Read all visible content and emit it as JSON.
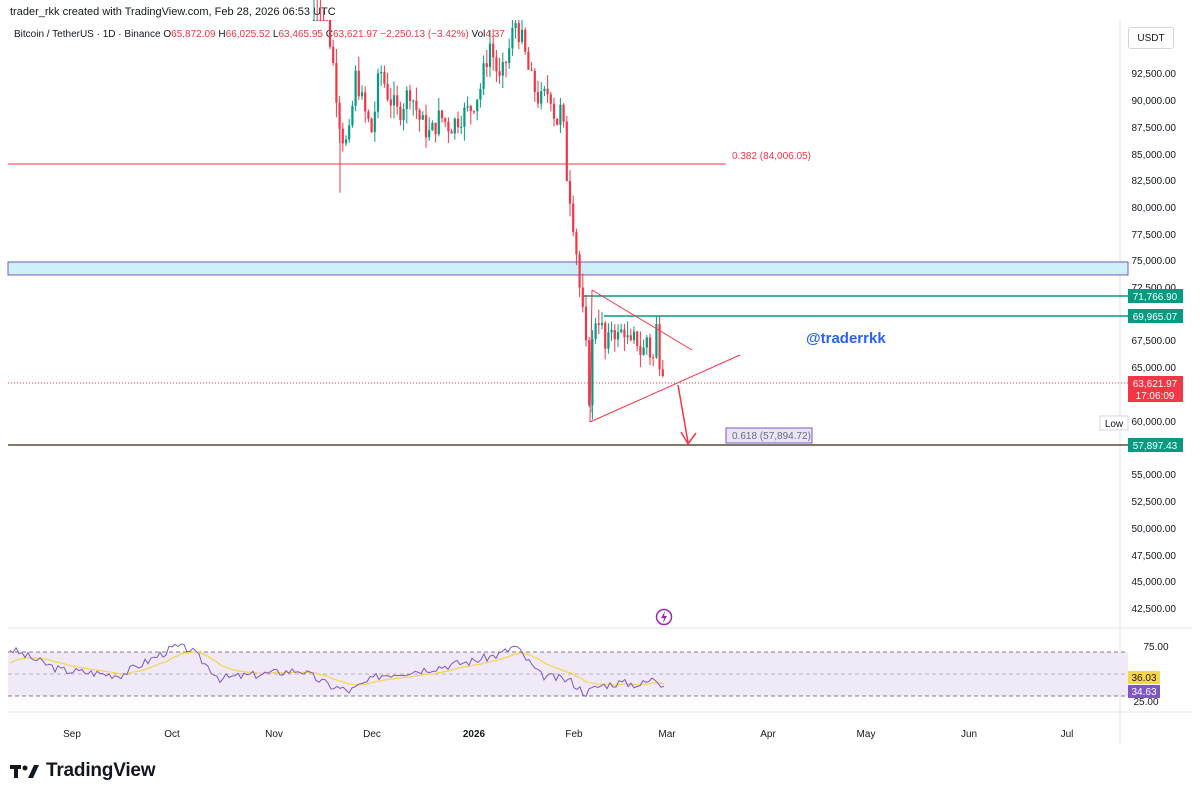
{
  "header": {
    "created_by": "trader_rkk created with TradingView.com, Feb 28, 2026 06:53 UTC"
  },
  "legend": {
    "symbol": "Bitcoin / TetherUS · 1D · Binance",
    "o_label": "O",
    "o_value": "65,872.09",
    "h_label": "H",
    "h_value": "66,025.52",
    "l_label": "L",
    "l_value": "63,465.95",
    "c_label": "C",
    "c_value": "63,621.97",
    "change": "−2,250.13 (−3.42%)",
    "vol_label": "Vol",
    "vol_value": "4.37"
  },
  "currency_button": "USDT",
  "brand": {
    "name": "TradingView"
  },
  "colors": {
    "up": "#089981",
    "down": "#f23645",
    "fib": "#f23645",
    "green_line": "#089981",
    "zone_fill": "#cdeff6",
    "zone_border": "#7e57c2",
    "rsi": "#7e57c2",
    "rsi_ma": "#f7d54a"
  },
  "chart_data": {
    "type": "candlestick",
    "y_axis": {
      "ylim": [
        40000,
        97000
      ],
      "ticks": [
        "42,500.00",
        "45,000.00",
        "47,500.00",
        "50,000.00",
        "52,500.00",
        "55,000.00",
        "57,500.00",
        "60,000.00",
        "62,500.00",
        "65,000.00",
        "67,500.00",
        "70,000.00",
        "72,500.00",
        "75,000.00",
        "77,500.00",
        "80,000.00",
        "82,500.00",
        "85,000.00",
        "87,500.00",
        "90,000.00",
        "92,500.00"
      ]
    },
    "x_axis": {
      "ticks": [
        "Sep",
        "Oct",
        "Nov",
        "Dec",
        "2026",
        "Feb",
        "Mar",
        "Apr",
        "May",
        "Jun",
        "Jul"
      ]
    },
    "candles_summary": [
      {
        "date": "Nov",
        "close": 104000
      },
      {
        "date": "Dec",
        "close": 87000
      },
      {
        "date": "2026",
        "close": 88500
      },
      {
        "date": "Jan mid",
        "close": 96000
      },
      {
        "date": "Feb",
        "close": 62500
      },
      {
        "date": "Feb 28",
        "close": 63621.97
      }
    ],
    "levels": [
      {
        "name": "fib-0382",
        "label": "0.382 (84,006.05)",
        "value": 84006.05
      },
      {
        "name": "fib-0618",
        "label": "0.618 (57,894.72)",
        "value": 57894.72
      },
      {
        "name": "resistance-1",
        "label": "71,766.90",
        "value": 71766.9
      },
      {
        "name": "resistance-2",
        "label": "69,965.07",
        "value": 69965.07
      },
      {
        "name": "support-low",
        "label": "57,897.43",
        "value": 57897.43
      }
    ],
    "zone": {
      "from": 73800,
      "to": 75000
    },
    "last_price": {
      "label": "63,621.97",
      "countdown": "17:06:09",
      "value": 63621.97
    },
    "low_tag": "Low",
    "watermark": "@traderrkk",
    "rsi": {
      "ticks": [
        "75.00",
        "25.00"
      ],
      "rsi_label": "34.63",
      "ma_label": "36.03",
      "rsi": 34.63,
      "ma": 36.03
    }
  }
}
